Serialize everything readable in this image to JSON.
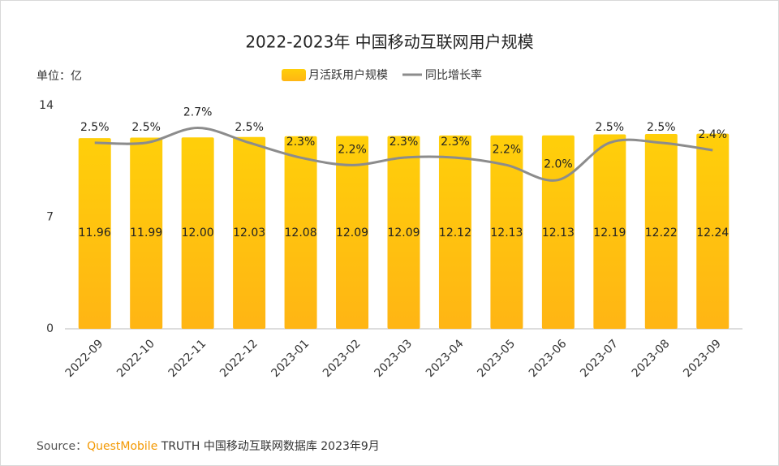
{
  "chart_data": {
    "type": "bar",
    "title": "2022-2023年 中国移动互联网用户规模",
    "unit": "单位：亿",
    "categories": [
      "2022-09",
      "2022-10",
      "2022-11",
      "2022-12",
      "2023-01",
      "2023-02",
      "2023-03",
      "2023-04",
      "2023-05",
      "2023-06",
      "2023-07",
      "2023-08",
      "2023-09"
    ],
    "series": [
      {
        "name": "月活跃用户规模",
        "type": "bar",
        "color": "#FFC107",
        "values": [
          11.96,
          11.99,
          12.0,
          12.03,
          12.08,
          12.09,
          12.09,
          12.12,
          12.13,
          12.13,
          12.19,
          12.22,
          12.24
        ],
        "value_labels": [
          "11.96",
          "11.99",
          "12.00",
          "12.03",
          "12.08",
          "12.09",
          "12.09",
          "12.12",
          "12.13",
          "12.13",
          "12.19",
          "12.22",
          "12.24"
        ]
      },
      {
        "name": "同比增长率",
        "type": "line",
        "axis": "y2",
        "color": "#8c8c8c",
        "values": [
          2.5,
          2.5,
          2.7,
          2.5,
          2.3,
          2.2,
          2.3,
          2.3,
          2.2,
          2.0,
          2.5,
          2.5,
          2.4
        ],
        "value_labels": [
          "2.5%",
          "2.5%",
          "2.7%",
          "2.5%",
          "2.3%",
          "2.2%",
          "2.3%",
          "2.3%",
          "2.2%",
          "2.0%",
          "2.5%",
          "2.5%",
          "2.4%"
        ]
      }
    ],
    "ylim": [
      0,
      14
    ],
    "yticks": [
      0,
      7,
      14
    ],
    "y2lim": [
      0,
      3
    ],
    "source": {
      "label": "Source：",
      "brand": "QuestMobile",
      "text": " TRUTH 中国移动互联网数据库 2023年9月"
    }
  }
}
